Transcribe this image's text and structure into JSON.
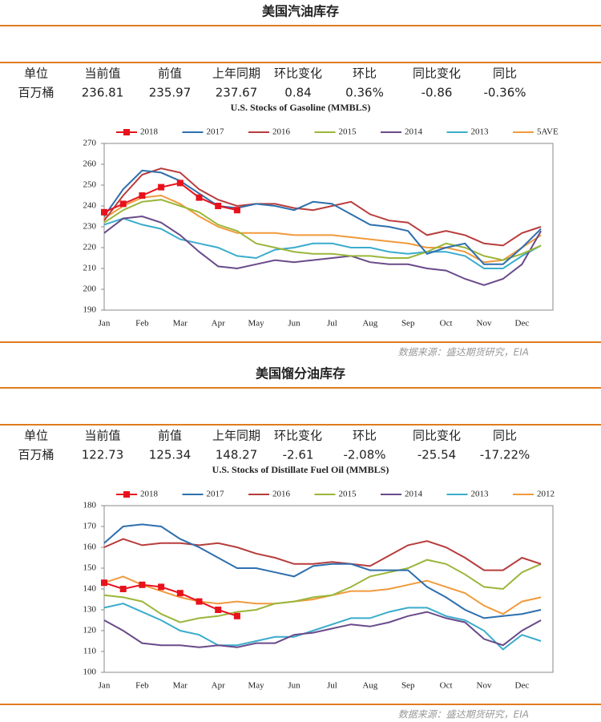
{
  "sections": [
    {
      "title": "美国汽油库存",
      "table": {
        "header": [
          "单位",
          "当前值",
          "前值",
          "上年同期",
          "环比变化",
          "环比",
          "同比变化",
          "同比"
        ],
        "rows": [
          [
            "百万桶",
            "236.81",
            "235.97",
            "237.67",
            "0.84",
            "0.36%",
            "-0.86",
            "-0.36%"
          ]
        ]
      },
      "source": "数据来源：盛达期货研究，EIA"
    },
    {
      "title": "美国馏分油库存",
      "table": {
        "header": [
          "单位",
          "当前值",
          "前值",
          "上年同期",
          "环比变化",
          "环比",
          "同比变化",
          "同比"
        ],
        "rows": [
          [
            "百万桶",
            "122.73",
            "125.34",
            "148.27",
            "-2.61",
            "-2.08%",
            "-25.54",
            "-17.22%"
          ]
        ]
      },
      "source": "数据来源：盛达期货研究，EIA"
    }
  ],
  "chart_data": [
    {
      "type": "line",
      "title": "U.S.  Stocks of  Gasoline (MMBLS)",
      "categories": [
        "Jan",
        null,
        "Feb",
        null,
        "Mar",
        null,
        "Apr",
        null,
        "May",
        null,
        "Jun",
        null,
        "Jul",
        null,
        "Aug",
        null,
        "Sep",
        null,
        "Oct",
        null,
        "Nov",
        null,
        "Dec",
        null
      ],
      "series": [
        {
          "name": "2018",
          "color": "#e8121c",
          "marker": "square",
          "values": [
            237,
            241,
            245,
            249,
            251,
            244,
            240,
            238,
            null,
            null,
            null,
            null,
            null,
            null,
            null,
            null,
            null,
            null,
            null,
            null,
            null,
            null,
            null,
            null
          ]
        },
        {
          "name": "2017",
          "color": "#2e6fad",
          "values": [
            235,
            248,
            257,
            256,
            252,
            246,
            240,
            239,
            241,
            240,
            238,
            242,
            241,
            236,
            231,
            230,
            228,
            217,
            220,
            222,
            212,
            212,
            220,
            229
          ]
        },
        {
          "name": "2016",
          "color": "#b83c3c",
          "values": [
            233,
            245,
            255,
            258,
            256,
            248,
            243,
            240,
            241,
            241,
            239,
            238,
            240,
            242,
            236,
            233,
            232,
            226,
            228,
            226,
            222,
            221,
            227,
            230
          ]
        },
        {
          "name": "2015",
          "color": "#9ab63a",
          "values": [
            232,
            238,
            242,
            243,
            240,
            237,
            231,
            228,
            222,
            220,
            218,
            217,
            217,
            216,
            216,
            215,
            215,
            218,
            222,
            220,
            216,
            214,
            217,
            221
          ]
        },
        {
          "name": "2014",
          "color": "#6a4a8a",
          "values": [
            227,
            234,
            235,
            232,
            226,
            218,
            211,
            210,
            212,
            214,
            213,
            214,
            215,
            216,
            213,
            212,
            212,
            210,
            209,
            205,
            202,
            205,
            212,
            228
          ]
        },
        {
          "name": "2013",
          "color": "#3aaccc",
          "values": [
            231,
            234,
            231,
            229,
            224,
            222,
            220,
            216,
            215,
            219,
            220,
            222,
            222,
            220,
            220,
            218,
            217,
            218,
            218,
            216,
            210,
            210,
            216,
            221
          ]
        },
        {
          "name": "5AVE",
          "color": "#f09a3c",
          "values": [
            234,
            240,
            244,
            245,
            241,
            235,
            230,
            227,
            227,
            227,
            226,
            226,
            226,
            225,
            224,
            223,
            222,
            220,
            220,
            218,
            213,
            214,
            220,
            226
          ]
        }
      ],
      "ylim": [
        190,
        270
      ],
      "yticks": [
        190,
        200,
        210,
        220,
        230,
        240,
        250,
        260,
        270
      ],
      "grid": false
    },
    {
      "type": "line",
      "title": "U.S.  Stocks of Distillate Fuel Oil (MMBLS)",
      "categories": [
        "Jan",
        null,
        "Feb",
        null,
        "Mar",
        null,
        "Apr",
        null,
        "May",
        null,
        "Jun",
        null,
        "Jul",
        null,
        "Aug",
        null,
        "Sep",
        null,
        "Oct",
        null,
        "Nov",
        null,
        "Dec",
        null
      ],
      "series": [
        {
          "name": "2018",
          "color": "#e8121c",
          "marker": "square",
          "values": [
            143,
            140,
            142,
            141,
            138,
            134,
            130,
            127,
            null,
            null,
            null,
            null,
            null,
            null,
            null,
            null,
            null,
            null,
            null,
            null,
            null,
            null,
            null,
            null
          ]
        },
        {
          "name": "2017",
          "color": "#2e6fad",
          "values": [
            162,
            170,
            171,
            170,
            164,
            160,
            155,
            150,
            150,
            148,
            146,
            151,
            152,
            152,
            149,
            149,
            149,
            141,
            136,
            130,
            126,
            127,
            128,
            130
          ]
        },
        {
          "name": "2016",
          "color": "#b83c3c",
          "values": [
            160,
            164,
            161,
            162,
            162,
            161,
            162,
            160,
            157,
            155,
            152,
            152,
            153,
            152,
            151,
            156,
            161,
            163,
            160,
            155,
            149,
            149,
            155,
            152
          ]
        },
        {
          "name": "2015",
          "color": "#9ab63a",
          "values": [
            137,
            136,
            134,
            128,
            124,
            126,
            127,
            129,
            130,
            133,
            134,
            136,
            137,
            141,
            146,
            148,
            150,
            154,
            152,
            147,
            141,
            140,
            148,
            152
          ]
        },
        {
          "name": "2014",
          "color": "#6a4a8a",
          "values": [
            125,
            120,
            114,
            113,
            113,
            112,
            113,
            112,
            114,
            114,
            118,
            119,
            121,
            123,
            122,
            124,
            127,
            129,
            126,
            124,
            116,
            113,
            120,
            125
          ]
        },
        {
          "name": "2013",
          "color": "#3aaccc",
          "values": [
            131,
            133,
            129,
            125,
            120,
            118,
            113,
            113,
            115,
            117,
            117,
            120,
            123,
            126,
            126,
            129,
            131,
            131,
            127,
            125,
            120,
            111,
            118,
            115
          ]
        },
        {
          "name": "2012",
          "color": "#f09a3c",
          "values": [
            143,
            146,
            142,
            139,
            136,
            134,
            133,
            134,
            133,
            133,
            134,
            135,
            137,
            139,
            139,
            140,
            142,
            144,
            141,
            138,
            132,
            128,
            134,
            136
          ]
        }
      ],
      "ylim": [
        100,
        180
      ],
      "yticks": [
        100,
        110,
        120,
        130,
        140,
        150,
        160,
        170,
        180
      ],
      "grid": false
    }
  ]
}
